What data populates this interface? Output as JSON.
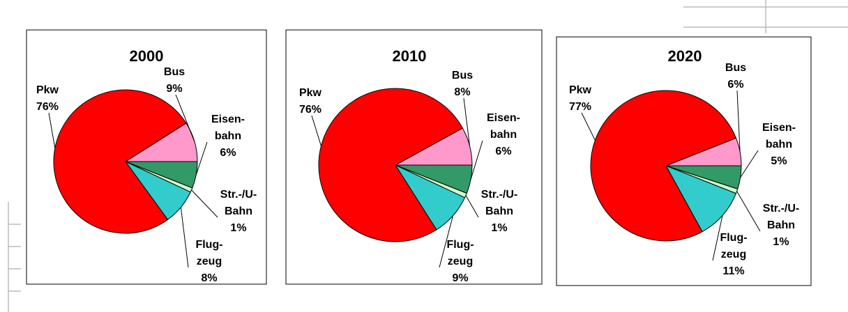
{
  "chart_data": [
    {
      "type": "pie",
      "title": "2000",
      "categories": [
        "Bus",
        "Eisen-\nbahn",
        "Str.-/U-\nBahn",
        "Flug-\nzeug",
        "Pkw"
      ],
      "values": [
        9,
        6,
        1,
        8,
        76
      ],
      "value_labels": [
        "9%",
        "6%",
        "1%",
        "8%",
        "76%"
      ],
      "colors": [
        "#ff99cc",
        "#339966",
        "#ccffcc",
        "#33cccc",
        "#ff0000"
      ]
    },
    {
      "type": "pie",
      "title": "2010",
      "categories": [
        "Bus",
        "Eisen-\nbahn",
        "Str.-/U-\nBahn",
        "Flug-\nzeug",
        "Pkw"
      ],
      "values": [
        8,
        6,
        1,
        9,
        76
      ],
      "value_labels": [
        "8%",
        "6%",
        "1%",
        "9%",
        "76%"
      ],
      "colors": [
        "#ff99cc",
        "#339966",
        "#ccffcc",
        "#33cccc",
        "#ff0000"
      ]
    },
    {
      "type": "pie",
      "title": "2020",
      "categories": [
        "Bus",
        "Eisen-\nbahn",
        "Str.-/U-\nBahn",
        "Flug-\nzeug",
        "Pkw"
      ],
      "values": [
        6,
        5,
        1,
        11,
        77
      ],
      "value_labels": [
        "6%",
        "5%",
        "1%",
        "11%",
        "77%"
      ],
      "colors": [
        "#ff99cc",
        "#339966",
        "#ccffcc",
        "#33cccc",
        "#ff0000"
      ]
    }
  ]
}
